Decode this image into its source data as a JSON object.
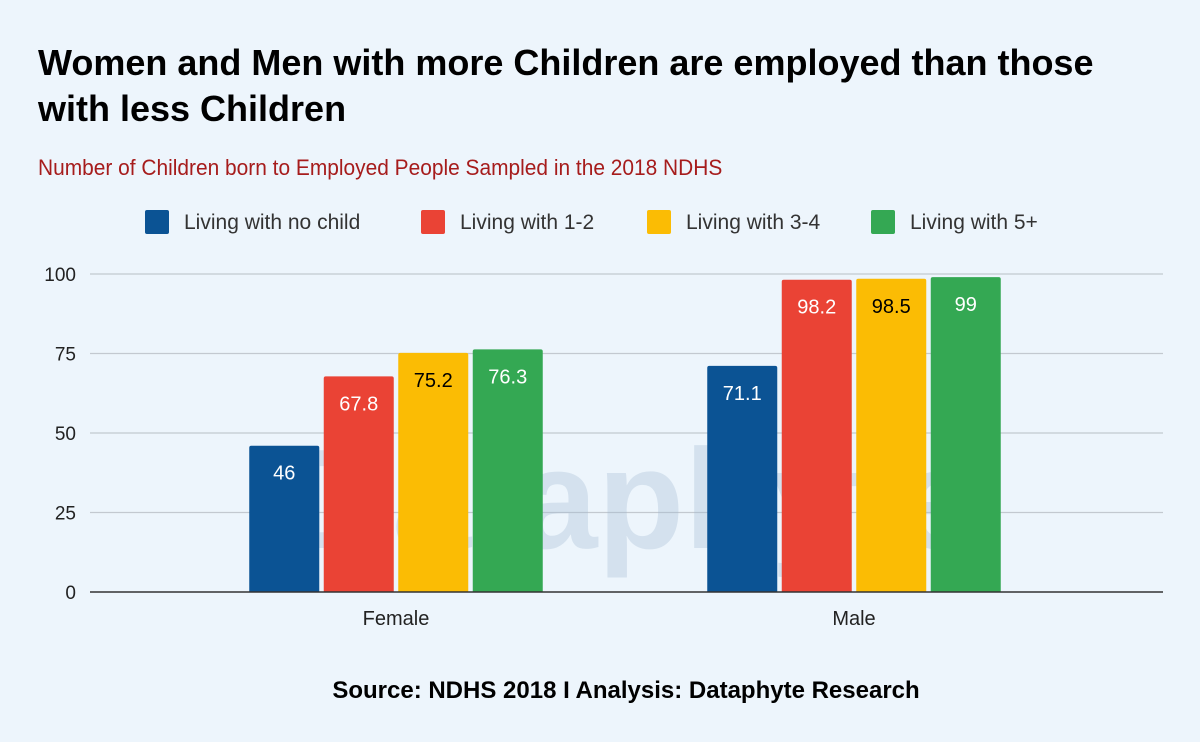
{
  "title": "Women and Men with more Children are employed than those with less Children",
  "subtitle": "Number of Children born to Employed People Sampled in the 2018 NDHS",
  "source": "Source: NDHS 2018 I Analysis: Dataphyte Research",
  "watermark": "Dataphyte",
  "colors": {
    "background": "#edf5fc",
    "subtitle": "#a61c1c",
    "gridline": "#c3c9d0",
    "axis": "#333333"
  },
  "chart_data": {
    "type": "bar",
    "categories": [
      "Female",
      "Male"
    ],
    "series": [
      {
        "name": "Living with no child",
        "color": "#0b5394",
        "label_color": "#ffffff",
        "values": [
          46,
          71.1
        ]
      },
      {
        "name": "Living with 1-2",
        "color": "#ea4335",
        "label_color": "#ffffff",
        "values": [
          67.8,
          98.2
        ]
      },
      {
        "name": "Living with 3-4",
        "color": "#fbbc04",
        "label_color": "#000000",
        "values": [
          75.2,
          98.5
        ]
      },
      {
        "name": "Living with 5+",
        "color": "#34a853",
        "label_color": "#ffffff",
        "values": [
          76.3,
          99
        ]
      }
    ],
    "ylim": [
      0,
      100
    ],
    "yticks": [
      0,
      25,
      50,
      75,
      100
    ],
    "xlabel": "",
    "ylabel": "",
    "legend_position": "top",
    "grid": true
  }
}
